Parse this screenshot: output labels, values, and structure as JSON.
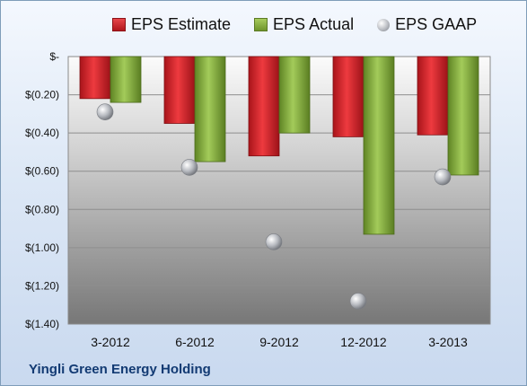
{
  "company": "Yingli Green Energy Holding",
  "legend": {
    "estimate": "EPS Estimate",
    "actual": "EPS Actual",
    "gaap": "EPS GAAP"
  },
  "colors": {
    "estimate": "#cc1f26",
    "actual": "#84ad3a",
    "gaap": "#a6a9ae"
  },
  "chart_data": {
    "type": "bar",
    "categories": [
      "3-2012",
      "6-2012",
      "9-2012",
      "12-2012",
      "3-2013"
    ],
    "series": [
      {
        "name": "EPS Estimate",
        "values": [
          -0.22,
          -0.35,
          -0.52,
          -0.42,
          -0.41
        ]
      },
      {
        "name": "EPS Actual",
        "values": [
          -0.24,
          -0.55,
          -0.4,
          -0.93,
          -0.62
        ]
      },
      {
        "name": "EPS GAAP",
        "values": [
          -0.29,
          -0.58,
          -0.97,
          -1.28,
          -0.63
        ]
      }
    ],
    "ylim": [
      -1.4,
      0
    ],
    "yticks": [
      0,
      -0.2,
      -0.4,
      -0.6,
      -0.8,
      -1.0,
      -1.2,
      -1.4
    ],
    "ytick_labels": [
      "$-",
      "$(0.20)",
      "$(0.40)",
      "$(0.60)",
      "$(0.80)",
      "$(1.00)",
      "$(1.20)",
      "$(1.40)"
    ],
    "grid": true,
    "legend_position": "top"
  }
}
